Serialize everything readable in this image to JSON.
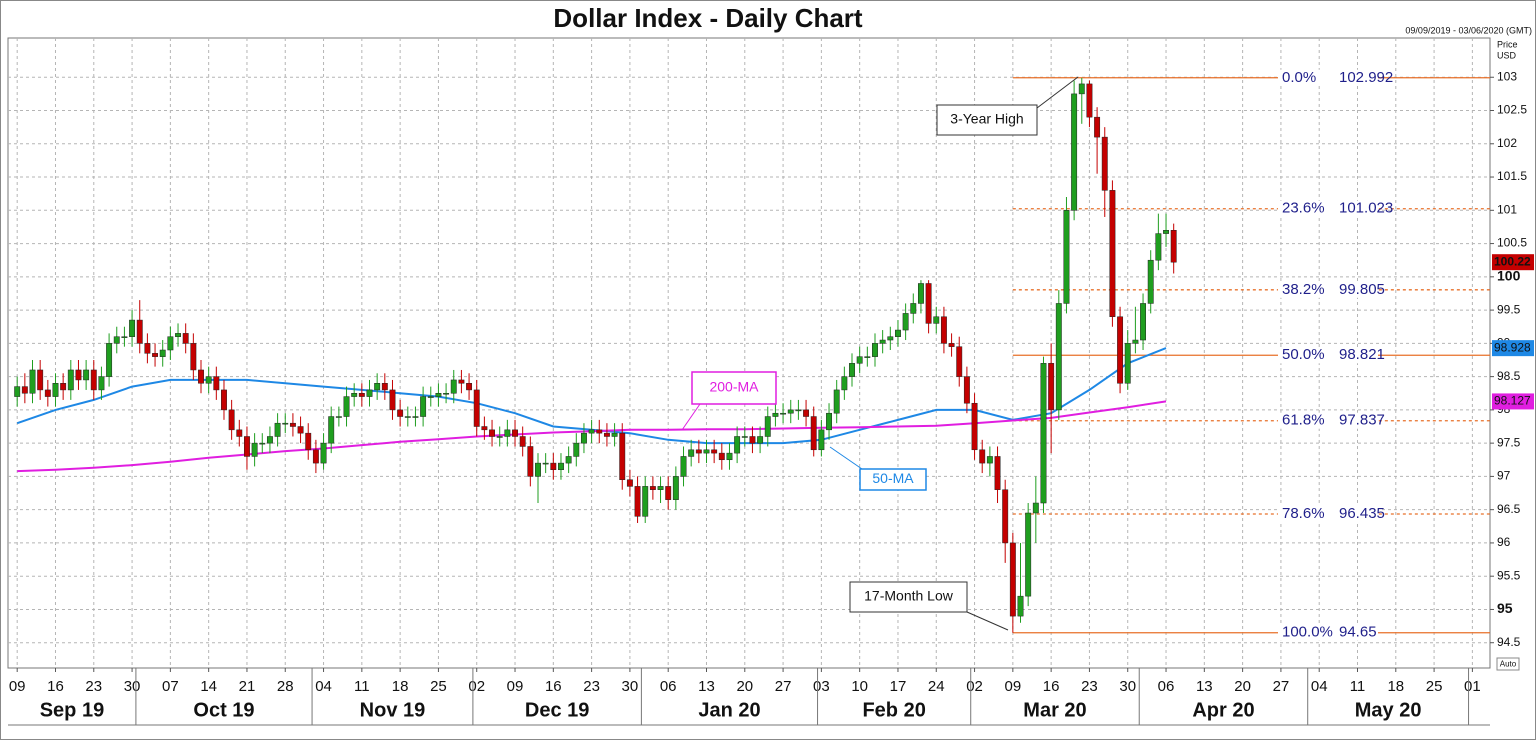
{
  "chart_data": {
    "type": "candlestick",
    "title": "Dollar Index - Daily Chart",
    "date_range": "09/09/2019 - 03/06/2020 (GMT)",
    "y_axis_label": "Price",
    "y_axis_unit": "USD",
    "scale_mode": "Auto",
    "up_color": "#1f9e1f",
    "down_color": "#c40000",
    "grid": true,
    "x": [
      0,
      1,
      2,
      3,
      4,
      5,
      6,
      7,
      8,
      9,
      10,
      11,
      12,
      13,
      14,
      15,
      16,
      17,
      18,
      19,
      20,
      21,
      22,
      23,
      24,
      25,
      26,
      27,
      28,
      29,
      30,
      31,
      32,
      33,
      34,
      35,
      36,
      37,
      38,
      39,
      40,
      41,
      42,
      43,
      44,
      45,
      46,
      47,
      48,
      49,
      50,
      51,
      52,
      53,
      54,
      55,
      56,
      57,
      58,
      59,
      60,
      61,
      62,
      63,
      64,
      65,
      66,
      67,
      68,
      69,
      70,
      71,
      72,
      73,
      74,
      75,
      76,
      77,
      78,
      79,
      80,
      81,
      82,
      83,
      84,
      85,
      86,
      87,
      88,
      89,
      90,
      91,
      92,
      93,
      94,
      95,
      96,
      97,
      98,
      99,
      100,
      101,
      102,
      103,
      104,
      105,
      106,
      107,
      108,
      109,
      110,
      111,
      112,
      113,
      114,
      115,
      116,
      117,
      118,
      119,
      120,
      121,
      122,
      123,
      124,
      125,
      126,
      127,
      128,
      129,
      130,
      131,
      132,
      133,
      134,
      135,
      136,
      137,
      138,
      139,
      140,
      141,
      142,
      143,
      144,
      145,
      146,
      147,
      148,
      149,
      150,
      151
    ],
    "open": [
      98.2,
      98.35,
      98.25,
      98.6,
      98.3,
      98.2,
      98.4,
      98.3,
      98.6,
      98.45,
      98.6,
      98.3,
      98.5,
      99.0,
      99.1,
      99.1,
      99.35,
      99.0,
      98.85,
      98.8,
      98.9,
      99.1,
      99.15,
      99.0,
      98.6,
      98.4,
      98.5,
      98.3,
      98.0,
      97.7,
      97.6,
      97.3,
      97.5,
      97.5,
      97.6,
      97.8,
      97.8,
      97.75,
      97.65,
      97.4,
      97.2,
      97.5,
      97.9,
      97.9,
      98.2,
      98.25,
      98.2,
      98.3,
      98.4,
      98.3,
      98.0,
      97.9,
      97.9,
      97.9,
      98.2,
      98.2,
      98.25,
      98.25,
      98.45,
      98.4,
      98.3,
      97.75,
      97.7,
      97.6,
      97.6,
      97.7,
      97.6,
      97.45,
      97.0,
      97.2,
      97.2,
      97.1,
      97.2,
      97.3,
      97.5,
      97.65,
      97.7,
      97.65,
      97.6,
      97.65,
      96.95,
      96.85,
      96.4,
      96.85,
      96.8,
      96.85,
      96.65,
      97.0,
      97.3,
      97.4,
      97.35,
      97.4,
      97.35,
      97.25,
      97.35,
      97.6,
      97.6,
      97.5,
      97.6,
      97.9,
      97.95,
      97.95,
      98.0,
      98.0,
      97.9,
      97.4,
      97.7,
      97.95,
      98.3,
      98.5,
      98.7,
      98.8,
      98.8,
      99.0,
      99.05,
      99.1,
      99.2,
      99.45,
      99.6,
      99.9,
      99.3,
      99.4,
      99.0,
      98.95,
      98.5,
      98.1,
      97.4,
      97.2,
      97.3,
      96.8,
      96.0,
      94.9,
      95.2,
      96.45,
      96.6,
      98.7,
      98.0,
      99.6,
      101.0,
      102.75,
      102.9,
      102.4,
      102.1,
      101.3,
      99.4,
      98.4,
      99.0,
      99.05,
      99.6,
      100.25,
      100.65,
      100.7
    ],
    "high": [
      98.5,
      98.55,
      98.75,
      98.75,
      98.45,
      98.55,
      98.55,
      98.75,
      98.75,
      98.75,
      98.75,
      98.65,
      99.15,
      99.25,
      99.25,
      99.5,
      99.65,
      99.15,
      99.0,
      99.05,
      99.25,
      99.3,
      99.3,
      99.15,
      98.75,
      98.65,
      98.65,
      98.45,
      98.15,
      97.85,
      97.75,
      97.65,
      97.65,
      97.75,
      97.95,
      97.95,
      97.95,
      97.9,
      97.8,
      97.55,
      97.65,
      98.05,
      98.05,
      98.35,
      98.4,
      98.4,
      98.45,
      98.55,
      98.55,
      98.45,
      98.15,
      98.05,
      98.05,
      98.35,
      98.35,
      98.4,
      98.4,
      98.6,
      98.6,
      98.55,
      98.45,
      97.9,
      97.85,
      97.75,
      97.85,
      97.85,
      97.75,
      97.6,
      97.35,
      97.35,
      97.35,
      97.35,
      97.45,
      97.65,
      97.8,
      97.85,
      97.85,
      97.8,
      97.8,
      97.8,
      97.1,
      97.0,
      97.0,
      97.0,
      97.0,
      97.0,
      97.15,
      97.45,
      97.55,
      97.55,
      97.55,
      97.55,
      97.5,
      97.5,
      97.75,
      97.75,
      97.75,
      97.75,
      98.05,
      98.1,
      98.1,
      98.15,
      98.15,
      98.15,
      98.05,
      97.85,
      98.1,
      98.45,
      98.65,
      98.85,
      98.95,
      98.95,
      99.15,
      99.2,
      99.25,
      99.35,
      99.6,
      99.75,
      99.95,
      99.95,
      99.55,
      99.55,
      99.15,
      99.1,
      98.65,
      98.25,
      97.55,
      97.45,
      97.45,
      96.95,
      96.15,
      96.0,
      96.6,
      97.0,
      98.8,
      99.0,
      99.8,
      101.2,
      102.95,
      102.99,
      102.95,
      102.55,
      102.25,
      101.45,
      99.55,
      99.2,
      99.55,
      99.75,
      100.4,
      100.95,
      100.95,
      100.8
    ],
    "low": [
      98.05,
      98.1,
      98.1,
      98.15,
      98.05,
      98.05,
      98.15,
      98.15,
      98.3,
      98.3,
      98.15,
      98.15,
      98.35,
      98.85,
      98.95,
      98.95,
      98.85,
      98.7,
      98.65,
      98.65,
      98.75,
      98.95,
      98.85,
      98.45,
      98.25,
      98.25,
      98.15,
      97.85,
      97.55,
      97.45,
      97.1,
      97.15,
      97.35,
      97.35,
      97.45,
      97.65,
      97.6,
      97.5,
      97.25,
      97.05,
      97.1,
      97.35,
      97.75,
      97.75,
      98.05,
      98.05,
      98.05,
      98.15,
      98.15,
      97.85,
      97.75,
      97.75,
      97.75,
      97.75,
      98.05,
      98.05,
      98.1,
      98.1,
      98.25,
      98.15,
      97.6,
      97.55,
      97.45,
      97.45,
      97.45,
      97.45,
      97.3,
      96.85,
      96.6,
      97.05,
      96.95,
      96.95,
      97.05,
      97.15,
      97.35,
      97.5,
      97.5,
      97.45,
      97.45,
      96.8,
      96.7,
      96.3,
      96.3,
      96.65,
      96.6,
      96.5,
      96.5,
      96.85,
      97.15,
      97.2,
      97.2,
      97.2,
      97.1,
      97.1,
      97.2,
      97.45,
      97.35,
      97.35,
      97.45,
      97.75,
      97.8,
      97.8,
      97.85,
      97.75,
      97.3,
      97.3,
      97.55,
      97.8,
      98.15,
      98.35,
      98.55,
      98.65,
      98.65,
      98.85,
      98.9,
      98.95,
      99.05,
      99.3,
      99.45,
      99.15,
      99.15,
      98.85,
      98.8,
      98.35,
      97.95,
      97.25,
      97.05,
      97.0,
      96.6,
      95.7,
      94.65,
      94.8,
      95.05,
      96.0,
      96.45,
      97.35,
      97.85,
      99.45,
      100.85,
      102.3,
      102.25,
      101.55,
      100.9,
      99.25,
      98.25,
      98.3,
      98.85,
      98.9,
      99.45,
      100.1,
      100.45,
      100.05
    ],
    "close": [
      98.35,
      98.25,
      98.6,
      98.3,
      98.2,
      98.4,
      98.3,
      98.6,
      98.45,
      98.6,
      98.3,
      98.5,
      99.0,
      99.1,
      99.1,
      99.35,
      99.0,
      98.85,
      98.8,
      98.9,
      99.1,
      99.15,
      99.0,
      98.6,
      98.4,
      98.5,
      98.3,
      98.0,
      97.7,
      97.6,
      97.3,
      97.5,
      97.5,
      97.6,
      97.8,
      97.8,
      97.75,
      97.65,
      97.4,
      97.2,
      97.5,
      97.9,
      97.9,
      98.2,
      98.25,
      98.2,
      98.3,
      98.4,
      98.3,
      98.0,
      97.9,
      97.9,
      97.9,
      98.2,
      98.2,
      98.25,
      98.25,
      98.45,
      98.4,
      98.3,
      97.75,
      97.7,
      97.6,
      97.6,
      97.7,
      97.6,
      97.45,
      97.0,
      97.2,
      97.2,
      97.1,
      97.2,
      97.3,
      97.5,
      97.65,
      97.7,
      97.65,
      97.6,
      97.65,
      96.95,
      96.85,
      96.4,
      96.85,
      96.8,
      96.85,
      96.65,
      97.0,
      97.3,
      97.4,
      97.35,
      97.4,
      97.35,
      97.25,
      97.35,
      97.6,
      97.6,
      97.5,
      97.6,
      97.9,
      97.95,
      97.95,
      98.0,
      98.0,
      97.9,
      97.4,
      97.7,
      97.95,
      98.3,
      98.5,
      98.7,
      98.8,
      98.8,
      99.0,
      99.05,
      99.1,
      99.2,
      99.45,
      99.6,
      99.9,
      99.3,
      99.4,
      99.0,
      98.95,
      98.5,
      98.1,
      97.4,
      97.2,
      97.3,
      96.8,
      96.0,
      94.9,
      95.2,
      96.45,
      96.6,
      98.7,
      98.0,
      99.6,
      101.0,
      102.75,
      102.9,
      102.4,
      102.1,
      101.3,
      99.4,
      98.4,
      99.0,
      99.05,
      99.6,
      100.25,
      100.65,
      100.7,
      100.22
    ],
    "series": [
      {
        "name": "50-MA",
        "color": "#1e88e5",
        "x": [
          0,
          5,
          10,
          15,
          20,
          25,
          30,
          35,
          40,
          45,
          50,
          55,
          60,
          65,
          70,
          75,
          80,
          85,
          90,
          95,
          100,
          105,
          110,
          115,
          120,
          125,
          130,
          135,
          140,
          145,
          150
        ],
        "values": [
          97.8,
          98.0,
          98.15,
          98.35,
          98.45,
          98.45,
          98.45,
          98.4,
          98.35,
          98.3,
          98.25,
          98.2,
          98.1,
          97.95,
          97.75,
          97.7,
          97.65,
          97.55,
          97.5,
          97.5,
          97.5,
          97.55,
          97.7,
          97.85,
          98.0,
          98.0,
          97.85,
          97.95,
          98.3,
          98.7,
          98.928
        ]
      },
      {
        "name": "200-MA",
        "color": "#e01ee0",
        "x": [
          0,
          5,
          10,
          15,
          20,
          25,
          30,
          35,
          40,
          45,
          50,
          55,
          60,
          65,
          70,
          75,
          80,
          85,
          90,
          95,
          100,
          105,
          110,
          115,
          120,
          125,
          130,
          135,
          140,
          145,
          150
        ],
        "values": [
          97.08,
          97.1,
          97.13,
          97.17,
          97.22,
          97.28,
          97.33,
          97.38,
          97.42,
          97.47,
          97.52,
          97.56,
          97.6,
          97.63,
          97.66,
          97.68,
          97.7,
          97.7,
          97.71,
          97.71,
          97.72,
          97.73,
          97.74,
          97.75,
          97.76,
          97.8,
          97.84,
          97.88,
          97.96,
          98.04,
          98.127
        ]
      }
    ],
    "fibonacci": {
      "anchor_x": 130,
      "color": "#e8702a",
      "levels": [
        {
          "label": "0.0%",
          "value": 102.992,
          "dashed": false
        },
        {
          "label": "23.6%",
          "value": 101.023,
          "dashed": true
        },
        {
          "label": "38.2%",
          "value": 99.805,
          "dashed": true
        },
        {
          "label": "50.0%",
          "value": 98.821,
          "dashed": false
        },
        {
          "label": "61.8%",
          "value": 97.837,
          "dashed": true
        },
        {
          "label": "78.6%",
          "value": 96.435,
          "dashed": true
        },
        {
          "label": "100.0%",
          "value": 94.65,
          "dashed": false
        }
      ]
    },
    "annotations": [
      "3-Year High",
      "17-Month Low"
    ],
    "xlim": [
      -1.2,
      192.3
    ],
    "ylim": [
      94.12,
      103.59
    ],
    "yticks": [
      94.5,
      95,
      95.5,
      96,
      96.5,
      97,
      97.5,
      98,
      98.5,
      99,
      99.5,
      100,
      100.5,
      101,
      101.5,
      102,
      102.5,
      103
    ],
    "bold_yticks": [
      95,
      100
    ],
    "xticks": [
      {
        "value": 0,
        "label": "09"
      },
      {
        "value": 5,
        "label": "16"
      },
      {
        "value": 10,
        "label": "23"
      },
      {
        "value": 15,
        "label": "30"
      },
      {
        "value": 20,
        "label": "07"
      },
      {
        "value": 25,
        "label": "14"
      },
      {
        "value": 30,
        "label": "21"
      },
      {
        "value": 35,
        "label": "28"
      },
      {
        "value": 40,
        "label": "04"
      },
      {
        "value": 45,
        "label": "11"
      },
      {
        "value": 50,
        "label": "18"
      },
      {
        "value": 55,
        "label": "25"
      },
      {
        "value": 60,
        "label": "02"
      },
      {
        "value": 65,
        "label": "09"
      },
      {
        "value": 70,
        "label": "16"
      },
      {
        "value": 75,
        "label": "23"
      },
      {
        "value": 80,
        "label": "30"
      },
      {
        "value": 85,
        "label": "06"
      },
      {
        "value": 90,
        "label": "13"
      },
      {
        "value": 95,
        "label": "20"
      },
      {
        "value": 100,
        "label": "27"
      },
      {
        "value": 105,
        "label": "03"
      },
      {
        "value": 110,
        "label": "10"
      },
      {
        "value": 115,
        "label": "17"
      },
      {
        "value": 120,
        "label": "24"
      },
      {
        "value": 125,
        "label": "02"
      },
      {
        "value": 130,
        "label": "09"
      },
      {
        "value": 135,
        "label": "16"
      },
      {
        "value": 140,
        "label": "23"
      },
      {
        "value": 145,
        "label": "30"
      },
      {
        "value": 150,
        "label": "06"
      },
      {
        "value": 155,
        "label": "13"
      },
      {
        "value": 160,
        "label": "20"
      },
      {
        "value": 165,
        "label": "27"
      },
      {
        "value": 170,
        "label": "04"
      },
      {
        "value": 175,
        "label": "11"
      },
      {
        "value": 180,
        "label": "18"
      },
      {
        "value": 185,
        "label": "25"
      },
      {
        "value": 190,
        "label": "01"
      }
    ],
    "months": [
      {
        "value": -5,
        "label": "Sep 19"
      },
      {
        "value": 16,
        "label": "Oct 19"
      },
      {
        "value": 39,
        "label": "Nov 19"
      },
      {
        "value": 60,
        "label": "Dec 19"
      },
      {
        "value": 82,
        "label": "Jan 20"
      },
      {
        "value": 105,
        "label": "Feb 20"
      },
      {
        "value": 125,
        "label": "Mar 20"
      },
      {
        "value": 147,
        "label": "Apr 20"
      },
      {
        "value": 169,
        "label": "May 20"
      },
      {
        "value": 190,
        "label": null
      }
    ]
  }
}
